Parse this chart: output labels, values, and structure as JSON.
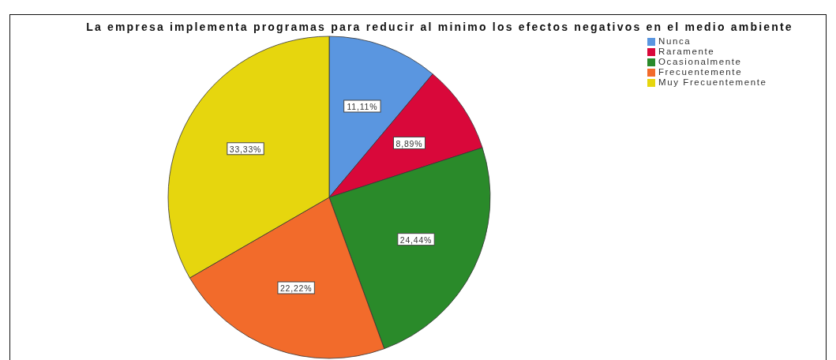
{
  "chart_data": {
    "type": "pie",
    "title": "La empresa implementa programas para reducir al minimo los efectos negativos en el medio ambiente",
    "categories": [
      "Nunca",
      "Raramente",
      "Ocasionalmente",
      "Frecuentemente",
      "Muy Frecuentemente"
    ],
    "values": [
      11.11,
      8.89,
      24.44,
      22.22,
      33.33
    ],
    "colors": [
      "#5a96e0",
      "#d9083a",
      "#2a8a2a",
      "#f26b2b",
      "#e6d60e"
    ],
    "value_labels": [
      "11,11%",
      "8,89%",
      "24,44%",
      "22,22%",
      "33,33%"
    ],
    "legend": "top right"
  }
}
